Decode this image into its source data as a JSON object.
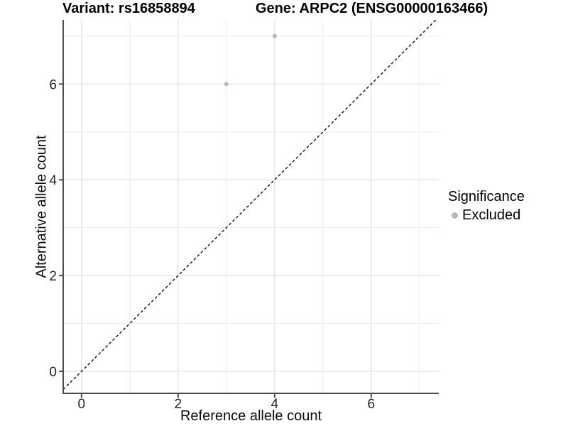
{
  "header": {
    "variant_title": "Variant: rs16858894",
    "gene_title": "Gene: ARPC2 (ENSG00000163466)"
  },
  "chart_data": {
    "type": "scatter",
    "xlabel": "Reference allele count",
    "ylabel": "Alternative allele count",
    "xlim": [
      -0.38,
      7.4
    ],
    "ylim": [
      -0.46,
      7.34
    ],
    "x_ticks": [
      0,
      2,
      4,
      6
    ],
    "y_ticks": [
      0,
      2,
      4,
      6
    ],
    "grid_x": [
      0,
      1,
      2,
      3,
      4,
      5,
      6,
      7
    ],
    "grid_y": [
      0,
      1,
      2,
      3,
      4,
      5,
      6,
      7
    ],
    "grid_on": true,
    "series": [
      {
        "name": "Excluded",
        "color": "#b8b8b8",
        "points": [
          {
            "x": 3,
            "y": 6
          },
          {
            "x": 4,
            "y": 7
          }
        ]
      }
    ],
    "reference_line": {
      "type": "identity-y-equals-x",
      "style": "dashed",
      "color": "#111111"
    },
    "legend": {
      "title": "Significance",
      "position": "right",
      "items": [
        {
          "label": "Excluded",
          "color": "#b8b8b8"
        }
      ]
    },
    "colors": {
      "gridline_major": "#e3e3e3",
      "gridline_minor": "#ededed",
      "axis_line": "#4d4d4d",
      "tick_label": "#262626"
    }
  }
}
